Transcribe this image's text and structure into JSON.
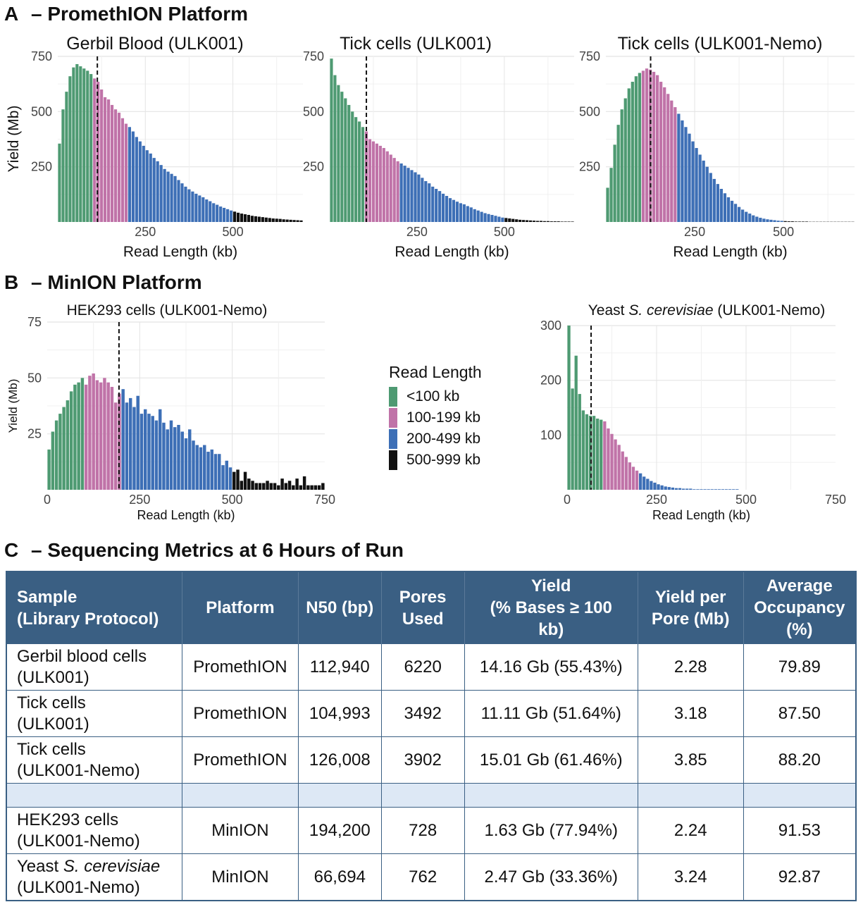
{
  "sections": {
    "a": {
      "letter": "A",
      "title": "– PromethION Platform"
    },
    "b": {
      "letter": "B",
      "title": "– MinION Platform"
    },
    "c": {
      "letter": "C",
      "title": "– Sequencing Metrics at 6 Hours of Run"
    }
  },
  "colors": {
    "lt100": "#4e9a72",
    "100_199": "#c073a8",
    "200_499": "#3d6fb6",
    "500_999": "#111111",
    "table_header": "#3a5f83",
    "table_spacer": "#dde8f5"
  },
  "legend": {
    "title": "Read Length",
    "items": [
      {
        "label": "<100 kb",
        "color": "#4e9a72"
      },
      {
        "label": "100-199 kb",
        "color": "#c073a8"
      },
      {
        "label": "200-499 kb",
        "color": "#3d6fb6"
      },
      {
        "label": "500-999 kb",
        "color": "#111111"
      }
    ]
  },
  "chart_data": [
    {
      "type": "bar",
      "title": "Gerbil Blood (ULK001)",
      "xlabel": "Read Length (kb)",
      "ylabel": "Yield (Mb)",
      "xlim": [
        0,
        700
      ],
      "ylim": [
        0,
        750
      ],
      "xticks": [
        "250",
        "500"
      ],
      "yticks": [
        "250",
        "500",
        "750"
      ],
      "show_zero_tick": false,
      "bin_width_kb": 10,
      "n50_kb": 113,
      "grid": true,
      "values": [
        355,
        510,
        590,
        660,
        700,
        715,
        705,
        695,
        685,
        670,
        650,
        635,
        600,
        565,
        555,
        530,
        510,
        495,
        470,
        445,
        430,
        410,
        385,
        365,
        345,
        325,
        310,
        290,
        275,
        258,
        240,
        228,
        218,
        208,
        190,
        175,
        160,
        148,
        138,
        128,
        120,
        112,
        102,
        94,
        85,
        78,
        70,
        64,
        58,
        52,
        47,
        42,
        38,
        35,
        32,
        28,
        26,
        24,
        22,
        20,
        18,
        16,
        15,
        14,
        12,
        11,
        10,
        9,
        8,
        7
      ]
    },
    {
      "type": "bar",
      "title": "Tick cells (ULK001)",
      "xlabel": "Read Length (kb)",
      "ylabel": "",
      "xlim": [
        0,
        700
      ],
      "ylim": [
        0,
        750
      ],
      "xticks": [
        "250",
        "500"
      ],
      "yticks": [
        "250",
        "500",
        "750"
      ],
      "show_zero_tick": false,
      "bin_width_kb": 10,
      "n50_kb": 105,
      "grid": true,
      "values": [
        740,
        665,
        620,
        590,
        560,
        530,
        500,
        475,
        455,
        430,
        410,
        375,
        365,
        355,
        345,
        335,
        320,
        305,
        290,
        275,
        265,
        255,
        245,
        235,
        225,
        215,
        200,
        185,
        175,
        160,
        150,
        140,
        128,
        118,
        108,
        100,
        92,
        85,
        80,
        72,
        66,
        58,
        52,
        46,
        40,
        36,
        32,
        28,
        24,
        20,
        18,
        16,
        14,
        12,
        10,
        9,
        8,
        7,
        6,
        5,
        5,
        4,
        4,
        3,
        3,
        3,
        2,
        2,
        2,
        2
      ]
    },
    {
      "type": "bar",
      "title": "Tick cells (ULK001-Nemo)",
      "xlabel": "Read Length (kb)",
      "ylabel": "",
      "xlim": [
        0,
        700
      ],
      "ylim": [
        0,
        750
      ],
      "xticks": [
        "250",
        "500"
      ],
      "yticks": [
        "250",
        "500",
        "750"
      ],
      "show_zero_tick": false,
      "bin_width_kb": 10,
      "n50_kb": 126,
      "grid": true,
      "values": [
        155,
        245,
        350,
        440,
        510,
        560,
        605,
        635,
        660,
        675,
        685,
        695,
        690,
        680,
        665,
        635,
        610,
        580,
        550,
        520,
        490,
        460,
        430,
        400,
        365,
        335,
        305,
        278,
        250,
        222,
        195,
        172,
        150,
        130,
        112,
        96,
        82,
        68,
        56,
        46,
        38,
        30,
        24,
        19,
        15,
        12,
        10,
        8,
        6,
        5,
        4,
        3,
        3,
        2,
        2,
        2,
        2,
        1,
        1,
        1,
        1,
        1,
        1,
        1,
        1,
        1,
        1,
        1,
        1,
        1
      ]
    },
    {
      "type": "bar",
      "title": "HEK293 cells (ULK001-Nemo)",
      "xlabel": "Read Length (kb)",
      "ylabel": "Yield (Mb)",
      "xlim": [
        0,
        750
      ],
      "ylim": [
        0,
        75
      ],
      "xticks": [
        "0",
        "250",
        "500",
        "750"
      ],
      "yticks": [
        "25",
        "50",
        "75"
      ],
      "show_zero_tick": true,
      "bin_width_kb": 10,
      "n50_kb": 194,
      "grid": true,
      "values": [
        18,
        26,
        31,
        34,
        37,
        40,
        44,
        47,
        48,
        50,
        47,
        51,
        52,
        49,
        48,
        50,
        48,
        46,
        39,
        43,
        45,
        39,
        41,
        37,
        42,
        34,
        36,
        34,
        33,
        31,
        36,
        30,
        27,
        31,
        28,
        29,
        26,
        23,
        27,
        22,
        20,
        19,
        20,
        17,
        18,
        16,
        16,
        11,
        13,
        10,
        8,
        9,
        4,
        8,
        5,
        4,
        3,
        3,
        3,
        4,
        3,
        3,
        2,
        5,
        3,
        4,
        2,
        5,
        2,
        6,
        2,
        2,
        2,
        2,
        3
      ]
    },
    {
      "type": "bar",
      "title_prefix": "Yeast ",
      "title_italic": "S. cerevisiae",
      "title_suffix": " (ULK001-Nemo)",
      "xlabel": "Read Length (kb)",
      "ylabel": "",
      "xlim": [
        0,
        750
      ],
      "ylim": [
        0,
        300
      ],
      "xticks": [
        "0",
        "250",
        "500",
        "750"
      ],
      "yticks": [
        "100",
        "200",
        "300"
      ],
      "show_zero_tick": true,
      "bin_width_kb": 10,
      "n50_kb": 67,
      "grid": true,
      "values": [
        300,
        185,
        245,
        175,
        145,
        138,
        135,
        135,
        130,
        128,
        125,
        112,
        102,
        92,
        82,
        70,
        60,
        50,
        42,
        35,
        30,
        24,
        20,
        16,
        13,
        10,
        8,
        6,
        5,
        4,
        3,
        3,
        2,
        2,
        2,
        1,
        1,
        1,
        1,
        1,
        1,
        1,
        1,
        1,
        1,
        1,
        1,
        1,
        0,
        0
      ]
    }
  ],
  "table": {
    "headers": [
      [
        "Sample",
        "(Library Protocol)"
      ],
      [
        "Platform"
      ],
      [
        "N50 (bp)"
      ],
      [
        "Pores",
        "Used"
      ],
      [
        "Yield",
        "(% Bases ≥ 100",
        "kb)"
      ],
      [
        "Yield per",
        "Pore (Mb)"
      ],
      [
        "Average",
        "Occupancy",
        "(%)"
      ]
    ],
    "rows": [
      {
        "sample": [
          "Gerbil blood cells",
          "(ULK001)"
        ],
        "platform": "PromethION",
        "n50": "112,940",
        "pores": "6220",
        "yield": "14.16 Gb (55.43%)",
        "yield_per_pore": "2.28",
        "occupancy": "79.89"
      },
      {
        "sample": [
          "Tick cells",
          "(ULK001)"
        ],
        "platform": "PromethION",
        "n50": "104,993",
        "pores": "3492",
        "yield": "11.11 Gb (51.64%)",
        "yield_per_pore": "3.18",
        "occupancy": "87.50"
      },
      {
        "sample": [
          "Tick cells",
          "(ULK001-Nemo)"
        ],
        "platform": "PromethION",
        "n50": "126,008",
        "pores": "3902",
        "yield": "15.01 Gb (61.46%)",
        "yield_per_pore": "3.85",
        "occupancy": "88.20"
      },
      {
        "spacer": true
      },
      {
        "sample": [
          "HEK293 cells",
          "(ULK001-Nemo)"
        ],
        "platform": "MinION",
        "n50": "194,200",
        "pores": "728",
        "yield": "1.63 Gb (77.94%)",
        "yield_per_pore": "2.24",
        "occupancy": "91.53"
      },
      {
        "sample_prefix": "Yeast ",
        "sample_italic": "S. cerevisiae",
        "sample_line2": "(ULK001-Nemo)",
        "platform": "MinION",
        "n50": "66,694",
        "pores": "762",
        "yield": "2.47 Gb (33.36%)",
        "yield_per_pore": "3.24",
        "occupancy": "92.87"
      }
    ]
  }
}
